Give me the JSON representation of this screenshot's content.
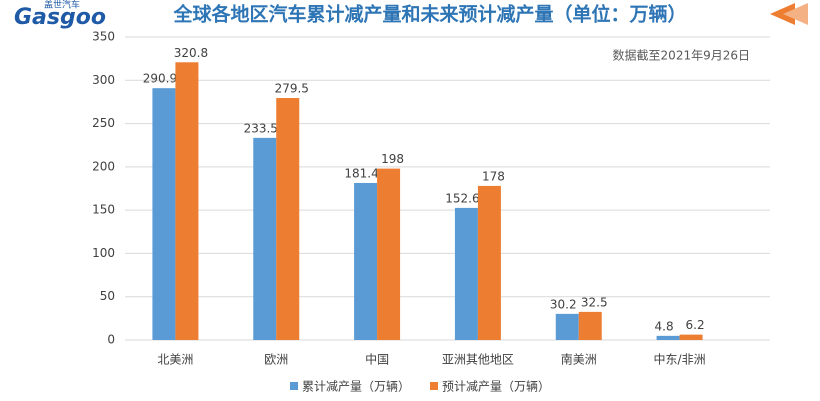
{
  "logo": {
    "brand": "Gasgoo",
    "name": "盖世汽车"
  },
  "chart_data": {
    "type": "bar",
    "title": "全球各地区汽车累计减产量和未来预计减产量（单位：万辆）",
    "annotation": "数据截至2021年9月26日",
    "categories": [
      "北美洲",
      "欧洲",
      "中国",
      "亚洲其他地区",
      "南美洲",
      "中东/非洲"
    ],
    "series": [
      {
        "name": "累计减产量（万辆）",
        "color": "#5b9bd5",
        "values": [
          290.9,
          233.5,
          181.4,
          152.6,
          30.2,
          4.8
        ]
      },
      {
        "name": "预计减产量（万辆）",
        "color": "#ed7d31",
        "values": [
          320.8,
          279.5,
          198,
          178,
          32.5,
          6.2
        ]
      }
    ],
    "ylim": [
      0,
      350
    ],
    "yticks": [
      0,
      50,
      100,
      150,
      200,
      250,
      300,
      350
    ],
    "grid": true,
    "legend": "bottom"
  }
}
